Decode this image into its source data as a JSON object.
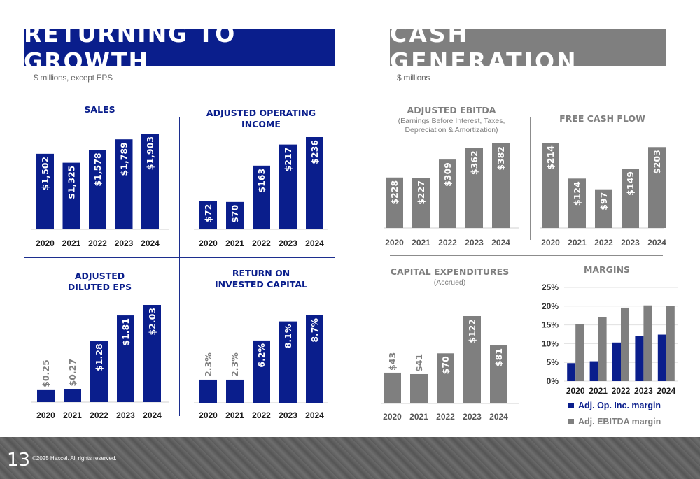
{
  "left_banner": "RETURNING TO GROWTH",
  "right_banner": "CASH GENERATION",
  "left_units": "$ millions, except EPS",
  "right_units": "$ millions",
  "footer": {
    "page_number": "13",
    "copyright": "©2025 Hexcel. All rights reserved."
  },
  "colors": {
    "navy": "#0a1e8c",
    "gray": "#7f7f7f",
    "footer": "#5f5f5f"
  },
  "chart_data": [
    {
      "id": "sales",
      "type": "bar",
      "title_lines": [
        "SALES"
      ],
      "subtitle_lines": [],
      "categories": [
        "2020",
        "2021",
        "2022",
        "2023",
        "2024"
      ],
      "values": [
        1502,
        1325,
        1578,
        1789,
        1903
      ],
      "data_labels": [
        "$1,502",
        "$1,325",
        "$1,578",
        "$1,789",
        "$1,903"
      ],
      "color": "#0a1e8c",
      "ylim": [
        0,
        1903
      ]
    },
    {
      "id": "adj-op-income",
      "type": "bar",
      "title_lines": [
        "ADJUSTED OPERATING",
        "INCOME"
      ],
      "subtitle_lines": [],
      "categories": [
        "2020",
        "2021",
        "2022",
        "2023",
        "2024"
      ],
      "values": [
        72,
        70,
        163,
        217,
        236
      ],
      "data_labels": [
        "$72",
        "$70",
        "$163",
        "$217",
        "$236"
      ],
      "color": "#0a1e8c",
      "ylim": [
        0,
        236
      ]
    },
    {
      "id": "adj-eps",
      "type": "bar",
      "title_lines": [
        "ADJUSTED",
        "DILUTED EPS"
      ],
      "subtitle_lines": [],
      "categories": [
        "2020",
        "2021",
        "2022",
        "2023",
        "2024"
      ],
      "values": [
        0.25,
        0.27,
        1.28,
        1.81,
        2.03
      ],
      "data_labels": [
        "$0.25",
        "$0.27",
        "$1.28",
        "$1.81",
        "$2.03"
      ],
      "color": "#0a1e8c",
      "ylim": [
        0,
        2.03
      ]
    },
    {
      "id": "roic",
      "type": "bar",
      "title_lines": [
        "RETURN ON",
        "INVESTED CAPITAL"
      ],
      "subtitle_lines": [],
      "categories": [
        "2020",
        "2021",
        "2022",
        "2023",
        "2024"
      ],
      "values": [
        2.3,
        2.3,
        6.2,
        8.1,
        8.7
      ],
      "data_labels": [
        "2.3%",
        "2.3%",
        "6.2%",
        "8.1%",
        "8.7%"
      ],
      "color": "#0a1e8c",
      "ylim": [
        0,
        8.7
      ]
    },
    {
      "id": "adj-ebitda",
      "type": "bar",
      "title_lines": [
        "ADJUSTED EBITDA"
      ],
      "subtitle_lines": [
        "(Earnings Before Interest, Taxes,",
        "Depreciation & Amortization)"
      ],
      "categories": [
        "2020",
        "2021",
        "2022",
        "2023",
        "2024"
      ],
      "values": [
        228,
        227,
        309,
        362,
        382
      ],
      "data_labels": [
        "$228",
        "$227",
        "$309",
        "$362",
        "$382"
      ],
      "color": "#7f7f7f",
      "ylim": [
        0,
        382
      ]
    },
    {
      "id": "fcf",
      "type": "bar",
      "title_lines": [
        "FREE CASH FLOW"
      ],
      "subtitle_lines": [],
      "categories": [
        "2020",
        "2021",
        "2022",
        "2023",
        "2024"
      ],
      "values": [
        214,
        124,
        97,
        149,
        203
      ],
      "data_labels": [
        "$214",
        "$124",
        "$97",
        "$149",
        "$203"
      ],
      "color": "#7f7f7f",
      "ylim": [
        0,
        214
      ]
    },
    {
      "id": "capex",
      "type": "bar",
      "title_lines": [
        "CAPITAL EXPENDITURES"
      ],
      "subtitle_lines": [
        "(Accrued)"
      ],
      "categories": [
        "2020",
        "2021",
        "2022",
        "2023",
        "2024"
      ],
      "values": [
        43,
        41,
        70,
        122,
        81
      ],
      "data_labels": [
        "$43",
        "$41",
        "$70",
        "$122",
        "$81"
      ],
      "color": "#7f7f7f",
      "ylim": [
        0,
        122
      ]
    },
    {
      "id": "margins",
      "type": "bar",
      "title_lines": [
        "MARGINS"
      ],
      "subtitle_lines": [],
      "categories": [
        "2020",
        "2021",
        "2022",
        "2023",
        "2024"
      ],
      "yticks": [
        "0%",
        "5%",
        "10%",
        "15%",
        "20%",
        "25%"
      ],
      "ylim": [
        0,
        25
      ],
      "grid": true,
      "legend_position": "bottom",
      "series": [
        {
          "name": "Adj. Op. Inc. margin",
          "values": [
            4.8,
            5.3,
            10.3,
            12.1,
            12.4
          ],
          "color": "#0a1e8c"
        },
        {
          "name": "Adj. EBITDA margin",
          "values": [
            15.2,
            17.1,
            19.6,
            20.2,
            20.1
          ],
          "color": "#7f7f7f"
        }
      ]
    }
  ]
}
